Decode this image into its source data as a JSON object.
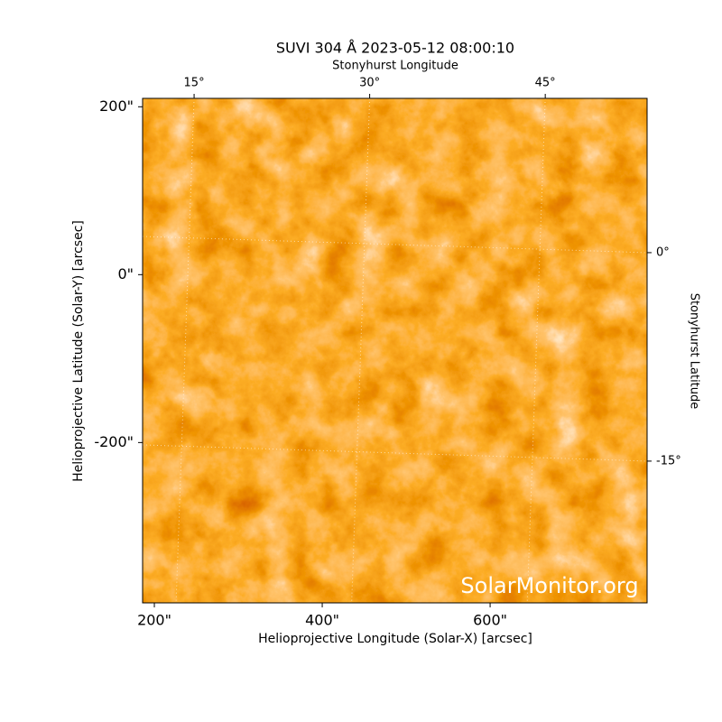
{
  "chart_data": {
    "type": "image",
    "title": "SUVI 304 Å 2023-05-12 08:00:10",
    "xlabel": "Helioprojective Longitude (Solar-X) [arcsec]",
    "ylabel": "Helioprojective Latitude (Solar-Y) [arcsec]",
    "x2label": "Stonyhurst Longitude",
    "y2label": "Stonyhurst Latitude",
    "xlim": [
      186,
      787
    ],
    "ylim": [
      -391,
      210
    ],
    "xticks": [
      {
        "value": 200,
        "label": "200\""
      },
      {
        "value": 400,
        "label": "400\""
      },
      {
        "value": 600,
        "label": "600\""
      }
    ],
    "yticks": [
      {
        "value": 200,
        "label": "200\""
      },
      {
        "value": 0,
        "label": "0\""
      },
      {
        "value": -200,
        "label": "-200\""
      }
    ],
    "x2lim": [
      10.6,
      53.7
    ],
    "x2ticks": [
      {
        "value": 15,
        "label": "15°"
      },
      {
        "value": 30,
        "label": "30°"
      },
      {
        "value": 45,
        "label": "45°"
      }
    ],
    "y2lim": [
      -25.2,
      11.1
    ],
    "y2ticks": [
      {
        "value": 0,
        "label": "0°"
      },
      {
        "value": -15,
        "label": "-15°"
      }
    ],
    "grid": true,
    "watermark": "SolarMonitor.org"
  }
}
